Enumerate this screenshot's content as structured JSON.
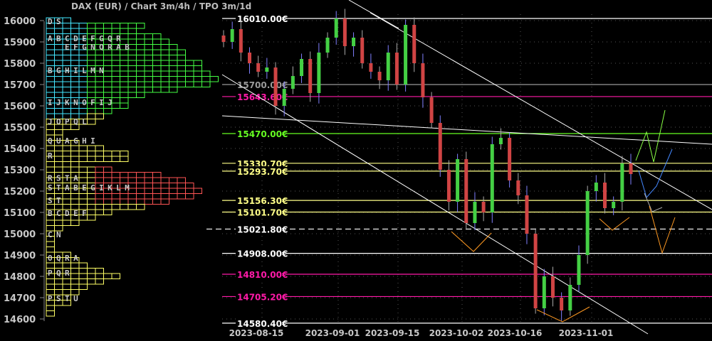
{
  "title": "DAX (EUR) /  Chart 3m/4h / TPO 3m/1d",
  "colors": {
    "up": "#44d044",
    "down": "#d04444",
    "green_profile": "#44ff44",
    "yellow_profile": "#ffff66",
    "red_profile": "#ff5555",
    "tpo_column": "#44e8ff",
    "magenta": "#ff1aa8"
  },
  "chart_data": {
    "type": "candlestick",
    "title": "DAX (EUR) /  Chart 3m/4h / TPO 3m/1d",
    "ylim": [
      14580,
      16060
    ],
    "y_ticks": [
      "16000",
      "15900",
      "15800",
      "15700",
      "15600",
      "15500",
      "15400",
      "15300",
      "15200",
      "15100",
      "15000",
      "14900",
      "14800",
      "14700",
      "14600"
    ],
    "x_ticks": [
      "2023-08-15",
      "2023-09-01",
      "2023-09-15",
      "2023-10-02",
      "2023-10-16",
      "2023-11-01"
    ],
    "grid": true,
    "closes": [
      15900,
      15960,
      15850,
      15800,
      15760,
      15780,
      15600,
      15680,
      15740,
      15820,
      15660,
      15850,
      15920,
      16010,
      15880,
      15920,
      15800,
      15760,
      15720,
      15850,
      15700,
      15980,
      15800,
      15640,
      15520,
      15300,
      15150,
      15350,
      15050,
      15150,
      15100,
      15420,
      15450,
      15250,
      15180,
      15000,
      14650,
      14800,
      14700,
      14640,
      14760,
      14900,
      15200,
      15240,
      15120,
      15150,
      15330,
      15280
    ],
    "levels": [
      {
        "price": 16010,
        "label": "16010.00€",
        "color": "#ffffff",
        "style": "solid"
      },
      {
        "price": 15700,
        "label": "15700.00€",
        "color": "#9a9a9a",
        "style": "solid"
      },
      {
        "price": 15643.6,
        "label": "15643.60€",
        "color": "#ff1aa8",
        "style": "solid"
      },
      {
        "price": 15470,
        "label": "15470.00€",
        "color": "#66ff22",
        "style": "solid"
      },
      {
        "price": 15330.7,
        "label": "15330.70€",
        "color": "#ffff88",
        "style": "solid"
      },
      {
        "price": 15293.7,
        "label": "15293.70€",
        "color": "#ffff88",
        "style": "solid"
      },
      {
        "price": 15156.3,
        "label": "15156.30€",
        "color": "#ffff88",
        "style": "solid"
      },
      {
        "price": 15101.7,
        "label": "15101.70€",
        "color": "#ffff88",
        "style": "solid"
      },
      {
        "price": 15021.8,
        "label": "15021.80€",
        "color": "#ffffff",
        "style": "dashed"
      },
      {
        "price": 14908,
        "label": "14908.00€",
        "color": "#ffffff",
        "style": "solid"
      },
      {
        "price": 14810,
        "label": "14810.00€",
        "color": "#ff1aa8",
        "style": "solid"
      },
      {
        "price": 14705.2,
        "label": "14705.20€",
        "color": "#ff1aa8",
        "style": "solid"
      },
      {
        "price": 14580.4,
        "label": "14580.40€",
        "color": "#ffffff",
        "style": "solid"
      }
    ],
    "tpo_profile": {
      "prices": [
        16000,
        15975,
        15950,
        15925,
        15900,
        15875,
        15850,
        15825,
        15800,
        15775,
        15750,
        15725,
        15700,
        15675,
        15650,
        15625,
        15600,
        15575,
        15550,
        15525,
        15500,
        15475,
        15450,
        15425,
        15400,
        15375,
        15350,
        15325,
        15300,
        15275,
        15250,
        15225,
        15200,
        15175,
        15150,
        15125,
        15100,
        15075,
        15050,
        15025,
        15000,
        14975,
        14950,
        14925,
        14900,
        14875,
        14850,
        14825,
        14800,
        14775,
        14750,
        14725,
        14700,
        14675,
        14650,
        14625
      ],
      "counts": [
        3,
        12,
        11,
        14,
        15,
        16,
        17,
        17,
        19,
        19,
        20,
        21,
        20,
        16,
        12,
        10,
        10,
        8,
        7,
        6,
        4,
        2,
        2,
        4,
        7,
        10,
        10,
        4,
        8,
        14,
        17,
        18,
        19,
        18,
        15,
        12,
        8,
        6,
        4,
        2,
        1,
        1,
        1,
        1,
        3,
        4,
        5,
        7,
        9,
        7,
        5,
        4,
        3,
        3,
        1,
        1
      ],
      "letter_rows": [
        {
          "price": 16000,
          "letters": "DS"
        },
        {
          "price": 15920,
          "letters": "ABCDEFGQR"
        },
        {
          "price": 15880,
          "letters": "  EFGNQRAB"
        },
        {
          "price": 15770,
          "letters": "BGHILMN"
        },
        {
          "price": 15620,
          "letters": "IJKNOFIJ"
        },
        {
          "price": 15530,
          "letters": "JOPQL"
        },
        {
          "price": 15440,
          "letters": "QUAGHI"
        },
        {
          "price": 15370,
          "letters": "R"
        },
        {
          "price": 15265,
          "letters": "RSTA"
        },
        {
          "price": 15220,
          "letters": "STABEGIKLM"
        },
        {
          "price": 15160,
          "letters": "ST"
        },
        {
          "price": 15100,
          "letters": "BCDEF"
        },
        {
          "price": 15000,
          "letters": "CN"
        },
        {
          "price": 14890,
          "letters": "OQRA"
        },
        {
          "price": 14820,
          "letters": "PQR"
        },
        {
          "price": 14700,
          "letters": "PSTU"
        }
      ]
    }
  }
}
